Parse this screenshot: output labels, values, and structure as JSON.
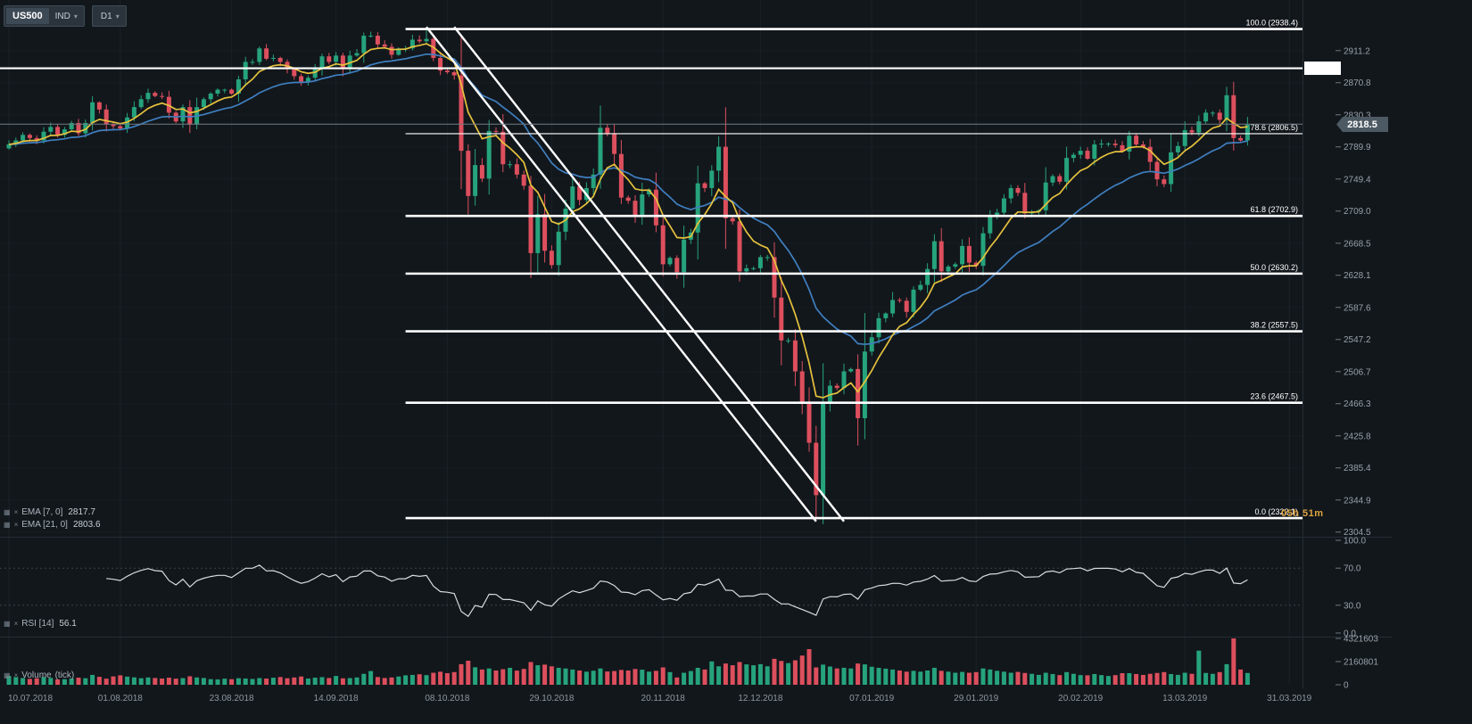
{
  "toolbar": {
    "symbol": "US500",
    "instrument_type": "IND",
    "timeframe": "D1"
  },
  "icons": {
    "caret": "▾",
    "panel": "▦",
    "close": "×"
  },
  "price_tag": {
    "value": "2818.5"
  },
  "countdown": "05h 51m",
  "indicators": {
    "ema1": {
      "label": "EMA [7, 0]",
      "value": "2817.7"
    },
    "ema2": {
      "label": "EMA [21, 0]",
      "value": "2803.6"
    },
    "rsi": {
      "label": "RSI [14]",
      "value": "56.1"
    },
    "volume": {
      "label": "Volume",
      "unit_label": "(tick)"
    }
  },
  "colors": {
    "up": "#26a37c",
    "down": "#dd4f5d",
    "ema_fast": "#e6c23d",
    "ema_slow": "#3f7fc0",
    "drawing": "#ffffff",
    "rsi_line": "#d6dbdf",
    "axis_text": "#98a2aa",
    "grid": "#1a2128",
    "separator": "#242d34",
    "current_price_line": "#707b84",
    "countdown": "#dda43e"
  },
  "chart_data": {
    "type": "candlestick",
    "symbol": "US500",
    "timeframe": "D1",
    "first_open": 2788,
    "closes": [
      2793,
      2798,
      2805,
      2801,
      2798,
      2809,
      2815,
      2805,
      2812,
      2820,
      2807,
      2820,
      2846,
      2837,
      2818,
      2816,
      2813,
      2827,
      2840,
      2850,
      2858,
      2854,
      2853,
      2833,
      2822,
      2840,
      2818,
      2840,
      2850,
      2857,
      2862,
      2862,
      2857,
      2875,
      2897,
      2897,
      2914,
      2901,
      2902,
      2897,
      2888,
      2879,
      2872,
      2877,
      2888,
      2904,
      2897,
      2905,
      2888,
      2905,
      2908,
      2930,
      2930,
      2919,
      2916,
      2906,
      2914,
      2914,
      2925,
      2923,
      2926,
      2902,
      2886,
      2884,
      2880,
      2785,
      2728,
      2767,
      2750,
      2810,
      2809,
      2768,
      2768,
      2755,
      2741,
      2656,
      2705,
      2659,
      2641,
      2683,
      2712,
      2740,
      2723,
      2738,
      2755,
      2814,
      2807,
      2781,
      2726,
      2722,
      2702,
      2730,
      2736,
      2691,
      2642,
      2650,
      2632,
      2673,
      2682,
      2744,
      2738,
      2760,
      2790,
      2700,
      2696,
      2633,
      2637,
      2637,
      2651,
      2651,
      2600,
      2546,
      2546,
      2507,
      2467,
      2417,
      2351,
      2468,
      2489,
      2486,
      2507,
      2510,
      2448,
      2532,
      2550,
      2574,
      2580,
      2597,
      2596,
      2582,
      2610,
      2616,
      2636,
      2671,
      2633,
      2639,
      2642,
      2665,
      2644,
      2640,
      2681,
      2704,
      2707,
      2725,
      2738,
      2732,
      2706,
      2708,
      2710,
      2745,
      2753,
      2746,
      2776,
      2780,
      2785,
      2775,
      2793,
      2794,
      2794,
      2792,
      2784,
      2804,
      2793,
      2790,
      2771,
      2749,
      2743,
      2783,
      2791,
      2811,
      2808,
      2822,
      2833,
      2833,
      2824,
      2855,
      2801,
      2798,
      2818
    ],
    "volumes_millions": [
      0.82,
      0.71,
      0.63,
      0.55,
      0.6,
      0.72,
      0.64,
      0.5,
      0.52,
      0.58,
      0.66,
      0.61,
      0.92,
      0.74,
      0.57,
      0.78,
      0.88,
      0.76,
      0.69,
      0.61,
      0.68,
      0.63,
      0.58,
      0.66,
      0.57,
      0.62,
      0.79,
      0.68,
      0.63,
      0.52,
      0.5,
      0.57,
      0.52,
      0.61,
      0.58,
      0.54,
      0.62,
      0.58,
      0.66,
      0.72,
      0.61,
      0.68,
      0.77,
      0.58,
      0.66,
      0.71,
      0.63,
      0.82,
      0.6,
      0.62,
      0.68,
      1.02,
      1.28,
      0.72,
      0.63,
      0.68,
      0.77,
      0.88,
      0.92,
      0.98,
      0.9,
      1.12,
      1.22,
      1.08,
      1.18,
      1.92,
      2.24,
      1.63,
      1.42,
      1.52,
      1.33,
      1.45,
      1.58,
      1.32,
      1.48,
      2.12,
      1.82,
      1.88,
      1.72,
      1.58,
      1.52,
      1.42,
      1.33,
      1.22,
      1.31,
      1.52,
      1.24,
      1.28,
      1.38,
      1.33,
      1.47,
      1.41,
      1.22,
      1.3,
      1.62,
      1.18,
      0.68,
      1.12,
      1.28,
      1.58,
      1.42,
      2.18,
      1.72,
      1.98,
      1.82,
      2.12,
      1.9,
      1.82,
      1.92,
      1.72,
      2.42,
      2.22,
      2.02,
      2.28,
      2.72,
      3.32,
      1.62,
      1.88,
      1.7,
      1.52,
      1.58,
      1.52,
      1.98,
      1.9,
      1.68,
      1.58,
      1.5,
      1.42,
      1.33,
      1.22,
      1.3,
      1.22,
      1.33,
      1.58,
      1.3,
      1.22,
      1.12,
      1.2,
      1.12,
      1.18,
      1.52,
      1.42,
      1.3,
      1.22,
      1.12,
      1.2,
      1.1,
      1.02,
      0.92,
      1.12,
      1.0,
      0.9,
      1.18,
      1.02,
      0.9,
      0.88,
      1.0,
      0.9,
      0.82,
      0.9,
      1.08,
      1.08,
      1.0,
      0.92,
      1.02,
      1.1,
      1.18,
      1.0,
      0.92,
      1.12,
      1.02,
      3.18,
      1.1,
      1.02,
      1.18,
      1.92,
      4.32,
      1.42,
      1.1
    ],
    "high_overrides": {
      "60": 2938.4,
      "51": 2934
    },
    "low_overrides": {
      "116": 2322.1
    },
    "volume_axis_max": 4321603,
    "emas": [
      {
        "period": 7
      },
      {
        "period": 21
      }
    ],
    "rsi_period": 14,
    "rsi_guides": [
      70,
      30
    ],
    "fib_levels": [
      {
        "label": "100.0 (2938.4)",
        "price": 2938.4,
        "thin": false
      },
      {
        "label": "78.6 (2806.5)",
        "price": 2806.5,
        "thin": true
      },
      {
        "label": "61.8 (2702.9)",
        "price": 2702.9,
        "thin": false
      },
      {
        "label": "50.0 (2630.2)",
        "price": 2630.2,
        "thin": false
      },
      {
        "label": "38.2 (2557.5)",
        "price": 2557.5,
        "thin": false
      },
      {
        "label": "23.6 (2467.5)",
        "price": 2467.5,
        "thin": false
      },
      {
        "label": "0.0 (2322.1)",
        "price": 2322.1,
        "thin": false
      }
    ],
    "fib_start_index": 57,
    "horizontal_line_price": 2889,
    "trend_lines": [
      {
        "i1": 60,
        "p1": 2941,
        "i2": 116,
        "p2": 2318
      },
      {
        "i1": 64,
        "p1": 2941,
        "i2": 120,
        "p2": 2318
      }
    ],
    "current_price": 2818.5,
    "price_axis_ticks": [
      "2911.2",
      "2870.8",
      "2830.3",
      "2789.9",
      "2749.4",
      "2709.0",
      "2668.5",
      "2628.1",
      "2587.6",
      "2547.2",
      "2506.7",
      "2466.3",
      "2425.8",
      "2385.4",
      "2344.9",
      "2304.5"
    ],
    "rsi_axis_ticks": [
      "100.0",
      "70.0",
      "30.0",
      "0.0"
    ],
    "volume_axis_ticks": [
      "4321603",
      "2160801",
      "0"
    ],
    "date_ticks": [
      {
        "label": "10.07.2018",
        "index": 0
      },
      {
        "label": "01.08.2018",
        "index": 16
      },
      {
        "label": "23.08.2018",
        "index": 32
      },
      {
        "label": "14.09.2018",
        "index": 47
      },
      {
        "label": "08.10.2018",
        "index": 63
      },
      {
        "label": "29.10.2018",
        "index": 78
      },
      {
        "label": "20.11.2018",
        "index": 94
      },
      {
        "label": "12.12.2018",
        "index": 108
      },
      {
        "label": "07.01.2019",
        "index": 124
      },
      {
        "label": "29.01.2019",
        "index": 139
      },
      {
        "label": "20.02.2019",
        "index": 154
      },
      {
        "label": "13.03.2019",
        "index": 169
      },
      {
        "label": "31.03.2019",
        "index": 184
      }
    ]
  }
}
